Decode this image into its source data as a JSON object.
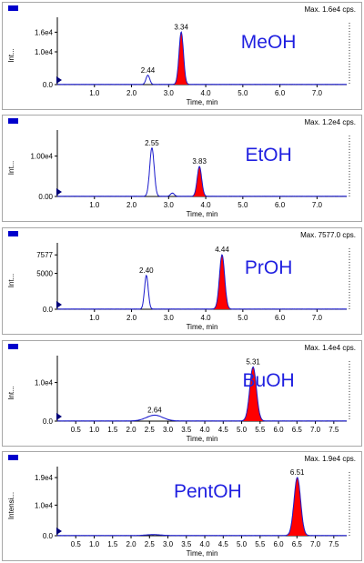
{
  "colors": {
    "trace": "#1a1acc",
    "fill": "#ff0000",
    "marker": "#0000cc",
    "label": "#1f1fe0",
    "panel_border": "#a8a8a8",
    "axis": "#000000"
  },
  "chart_data": [
    {
      "type": "line",
      "solvent_label": "MeOH",
      "max_label": "Max. 1.6e4 cps.",
      "ylabel": "Int...",
      "xlabel": "Time, min",
      "xlim": [
        0,
        7.8
      ],
      "ylim": [
        0,
        20000
      ],
      "x_ticks": [
        "1.0",
        "2.0",
        "3.0",
        "4.0",
        "5.0",
        "6.0",
        "7.0"
      ],
      "x_tick_values": [
        1.0,
        2.0,
        3.0,
        4.0,
        5.0,
        6.0,
        7.0
      ],
      "y_ticks": [
        "1.6e4",
        "1.0e4",
        "0.0"
      ],
      "y_tick_values": [
        16000,
        10000,
        0
      ],
      "peaks": [
        {
          "rt": 2.44,
          "label": "2.44",
          "height": 2800,
          "width": 0.05,
          "filled": false
        },
        {
          "rt": 3.34,
          "label": "3.34",
          "height": 16000,
          "width": 0.06,
          "filled": true
        }
      ]
    },
    {
      "type": "line",
      "solvent_label": "EtOH",
      "max_label": "Max. 1.2e4 cps.",
      "ylabel": "Int...",
      "xlabel": "Time, min",
      "xlim": [
        0,
        7.8
      ],
      "ylim": [
        0,
        16000
      ],
      "x_ticks": [
        "1.0",
        "2.0",
        "3.0",
        "4.0",
        "5.0",
        "6.0",
        "7.0"
      ],
      "x_tick_values": [
        1.0,
        2.0,
        3.0,
        4.0,
        5.0,
        6.0,
        7.0
      ],
      "y_ticks": [
        "1.00e4",
        "0.00"
      ],
      "y_tick_values": [
        10000,
        0
      ],
      "peaks": [
        {
          "rt": 2.55,
          "label": "2.55",
          "height": 12000,
          "width": 0.06,
          "filled": false
        },
        {
          "rt": 3.1,
          "label": "",
          "height": 800,
          "width": 0.05,
          "filled": false
        },
        {
          "rt": 3.83,
          "label": "3.83",
          "height": 7400,
          "width": 0.06,
          "filled": true
        }
      ]
    },
    {
      "type": "line",
      "solvent_label": "PrOH",
      "max_label": "Max. 7577.0 cps.",
      "ylabel": "Int...",
      "xlabel": "Time, min",
      "xlim": [
        0,
        7.8
      ],
      "ylim": [
        0,
        9000
      ],
      "x_ticks": [
        "1.0",
        "2.0",
        "3.0",
        "4.0",
        "5.0",
        "6.0",
        "7.0"
      ],
      "x_tick_values": [
        1.0,
        2.0,
        3.0,
        4.0,
        5.0,
        6.0,
        7.0
      ],
      "y_ticks": [
        "7577",
        "5000",
        "0.0"
      ],
      "y_tick_values": [
        7577,
        5000,
        0
      ],
      "peaks": [
        {
          "rt": 2.4,
          "label": "2.40",
          "height": 4700,
          "width": 0.05,
          "filled": false
        },
        {
          "rt": 4.44,
          "label": "4.44",
          "height": 7577,
          "width": 0.07,
          "filled": true
        }
      ]
    },
    {
      "type": "line",
      "solvent_label": "BuOH",
      "max_label": "Max. 1.4e4 cps.",
      "ylabel": "Int...",
      "xlabel": "Time, min",
      "xlim": [
        0,
        7.85
      ],
      "ylim": [
        0,
        16500
      ],
      "x_ticks": [
        "0.5",
        "1.0",
        "1.5",
        "2.0",
        "2.5",
        "3.0",
        "3.5",
        "4.0",
        "4.5",
        "5.0",
        "5.5",
        "6.0",
        "6.5",
        "7.0",
        "7.5"
      ],
      "x_tick_values": [
        0.5,
        1.0,
        1.5,
        2.0,
        2.5,
        3.0,
        3.5,
        4.0,
        4.5,
        5.0,
        5.5,
        6.0,
        6.5,
        7.0,
        7.5
      ],
      "y_ticks": [
        "1.0e4",
        "0.0"
      ],
      "y_tick_values": [
        10000,
        0
      ],
      "peaks": [
        {
          "rt": 2.64,
          "label": "2.64",
          "height": 1500,
          "width": 0.22,
          "filled": false
        },
        {
          "rt": 5.31,
          "label": "5.31",
          "height": 14000,
          "width": 0.09,
          "filled": true
        }
      ]
    },
    {
      "type": "line",
      "solvent_label": "PentOH",
      "max_label": "Max. 1.9e4 cps.",
      "ylabel": "Intensi...",
      "xlabel": "Time, min",
      "xlim": [
        0,
        7.85
      ],
      "ylim": [
        0,
        22000
      ],
      "x_ticks": [
        "0.5",
        "1.0",
        "1.5",
        "2.0",
        "2.5",
        "3.0",
        "3.5",
        "4.0",
        "4.5",
        "5.0",
        "5.5",
        "6.0",
        "6.5",
        "7.0",
        "7.5"
      ],
      "x_tick_values": [
        0.5,
        1.0,
        1.5,
        2.0,
        2.5,
        3.0,
        3.5,
        4.0,
        4.5,
        5.0,
        5.5,
        6.0,
        6.5,
        7.0,
        7.5
      ],
      "y_ticks": [
        "1.9e4",
        "1.0e4",
        "0.0"
      ],
      "y_tick_values": [
        19000,
        10000,
        0
      ],
      "peaks": [
        {
          "rt": 2.6,
          "label": "",
          "height": 300,
          "width": 0.2,
          "filled": false
        },
        {
          "rt": 6.51,
          "label": "6.51",
          "height": 19000,
          "width": 0.09,
          "filled": true
        }
      ]
    }
  ]
}
